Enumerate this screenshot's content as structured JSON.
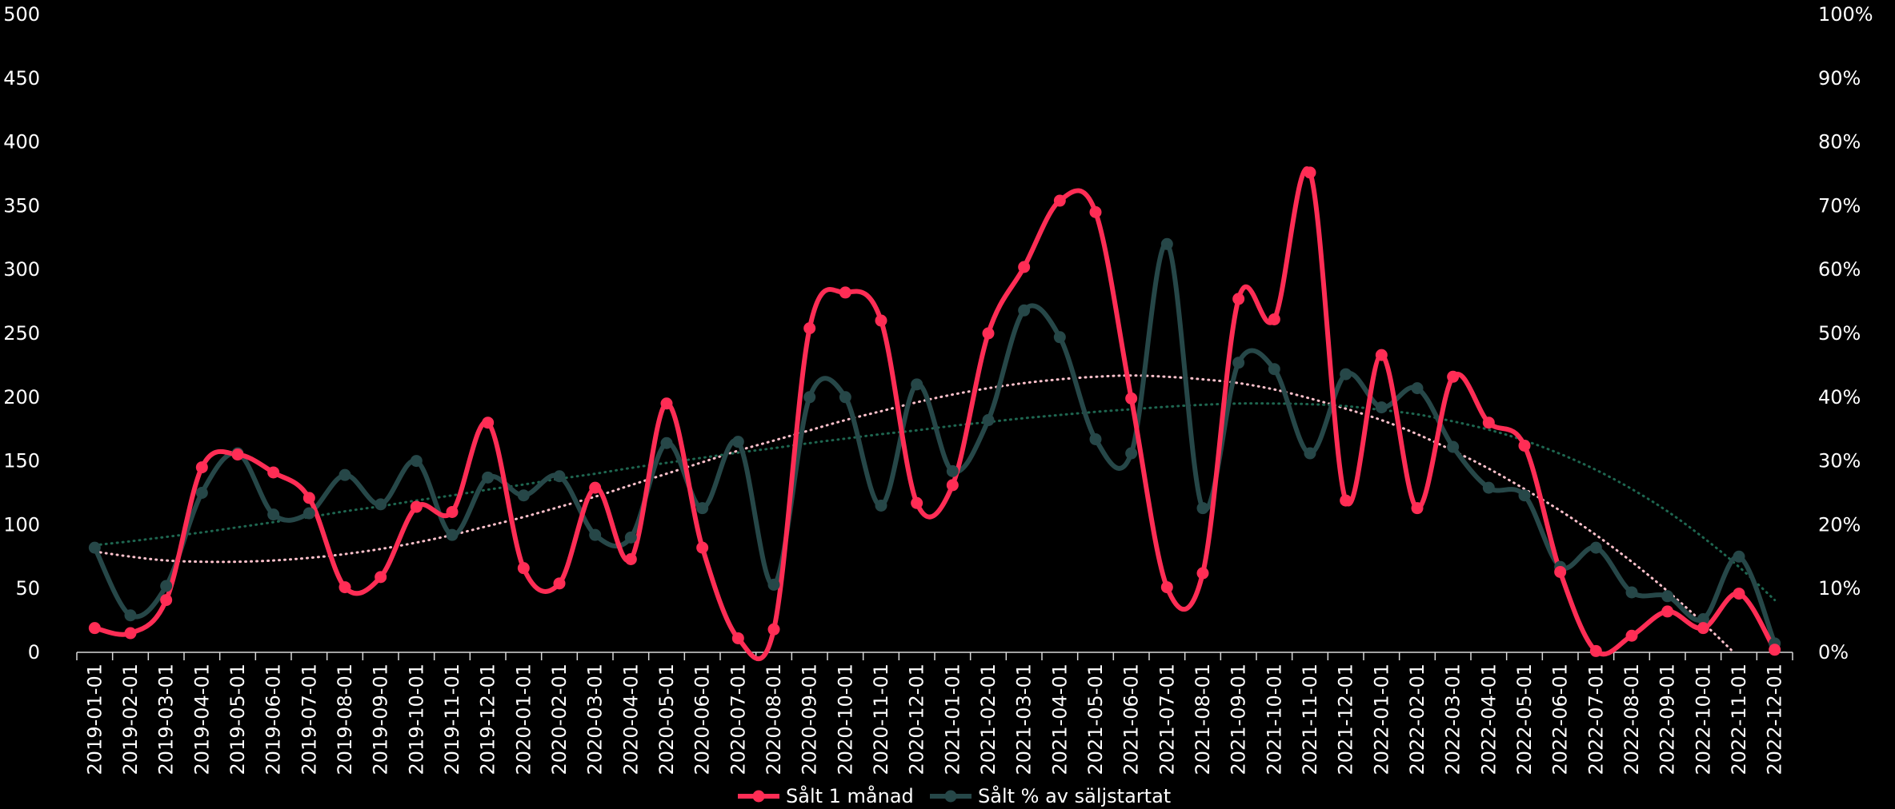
{
  "chart_data": {
    "type": "line",
    "title": "",
    "xlabel": "",
    "ylabel": "",
    "y2label": "",
    "ylim": [
      0,
      500
    ],
    "y2lim": [
      0,
      1
    ],
    "y_ticks": [
      "0",
      "50",
      "100",
      "150",
      "200",
      "250",
      "300",
      "350",
      "400",
      "450",
      "500"
    ],
    "y2_ticks": [
      "0%",
      "10%",
      "20%",
      "30%",
      "40%",
      "50%",
      "60%",
      "70%",
      "80%",
      "90%",
      "100%"
    ],
    "grid": false,
    "legend_position": "bottom-center",
    "categories": [
      "2019-01-01",
      "2019-02-01",
      "2019-03-01",
      "2019-04-01",
      "2019-05-01",
      "2019-06-01",
      "2019-07-01",
      "2019-08-01",
      "2019-09-01",
      "2019-10-01",
      "2019-11-01",
      "2019-12-01",
      "2020-01-01",
      "2020-02-01",
      "2020-03-01",
      "2020-04-01",
      "2020-05-01",
      "2020-06-01",
      "2020-07-01",
      "2020-08-01",
      "2020-09-01",
      "2020-10-01",
      "2020-11-01",
      "2020-12-01",
      "2021-01-01",
      "2021-02-01",
      "2021-03-01",
      "2021-04-01",
      "2021-05-01",
      "2021-06-01",
      "2021-07-01",
      "2021-08-01",
      "2021-09-01",
      "2021-10-01",
      "2021-11-01",
      "2021-12-01",
      "2022-01-01",
      "2022-02-01",
      "2022-03-01",
      "2022-04-01",
      "2022-05-01",
      "2022-06-01",
      "2022-07-01",
      "2022-08-01",
      "2022-09-01",
      "2022-10-01",
      "2022-11-01",
      "2022-12-01"
    ],
    "series": [
      {
        "name": "Sålt 1 månad",
        "axis": "left",
        "color": "#ff2d55",
        "values": [
          19,
          15,
          41,
          145,
          155,
          141,
          121,
          51,
          59,
          114,
          110,
          180,
          66,
          54,
          129,
          73,
          195,
          82,
          11,
          18,
          254,
          282,
          260,
          117,
          131,
          250,
          302,
          354,
          345,
          199,
          51,
          62,
          277,
          261,
          376,
          119,
          233,
          113,
          216,
          180,
          162,
          63,
          1,
          13,
          32,
          19,
          46,
          2
        ]
      },
      {
        "name": "Sålt % av säljstartat",
        "axis": "right",
        "color": "#264748",
        "values": [
          0.164,
          0.058,
          0.104,
          0.25,
          0.312,
          0.216,
          0.218,
          0.278,
          0.232,
          0.3,
          0.184,
          0.274,
          0.246,
          0.276,
          0.184,
          0.18,
          0.328,
          0.226,
          0.33,
          0.106,
          0.4,
          0.4,
          0.23,
          0.42,
          0.284,
          0.364,
          0.536,
          0.494,
          0.334,
          0.312,
          0.64,
          0.226,
          0.454,
          0.444,
          0.312,
          0.436,
          0.384,
          0.414,
          0.322,
          0.258,
          0.246,
          0.134,
          0.164,
          0.094,
          0.088,
          0.052,
          0.15,
          0.014
        ]
      }
    ],
    "trendlines": [
      {
        "of": "Sålt 1 månad",
        "kind": "polynomial",
        "style": "dotted",
        "color": "#ffc2cc",
        "values": [
          79,
          75,
          72,
          71,
          71,
          72,
          74,
          77,
          81,
          86,
          92,
          99,
          106,
          114,
          122,
          131,
          140,
          149,
          158,
          166,
          174,
          182,
          189,
          196,
          202,
          207,
          211,
          214,
          216,
          217,
          216,
          214,
          211,
          206,
          199,
          191,
          182,
          171,
          158,
          144,
          128,
          111,
          92,
          71,
          48,
          23,
          -4,
          -33
        ]
      },
      {
        "of": "Sålt % av säljstartat",
        "kind": "polynomial",
        "style": "dotted",
        "color": "#1e6650",
        "values": [
          0.168,
          0.174,
          0.181,
          0.188,
          0.196,
          0.204,
          0.212,
          0.221,
          0.229,
          0.238,
          0.246,
          0.255,
          0.263,
          0.272,
          0.28,
          0.289,
          0.297,
          0.305,
          0.313,
          0.32,
          0.328,
          0.335,
          0.342,
          0.348,
          0.355,
          0.361,
          0.367,
          0.372,
          0.377,
          0.381,
          0.385,
          0.388,
          0.39,
          0.39,
          0.389,
          0.386,
          0.38,
          0.373,
          0.362,
          0.349,
          0.332,
          0.311,
          0.286,
          0.256,
          0.221,
          0.18,
          0.134,
          0.082
        ]
      }
    ]
  }
}
